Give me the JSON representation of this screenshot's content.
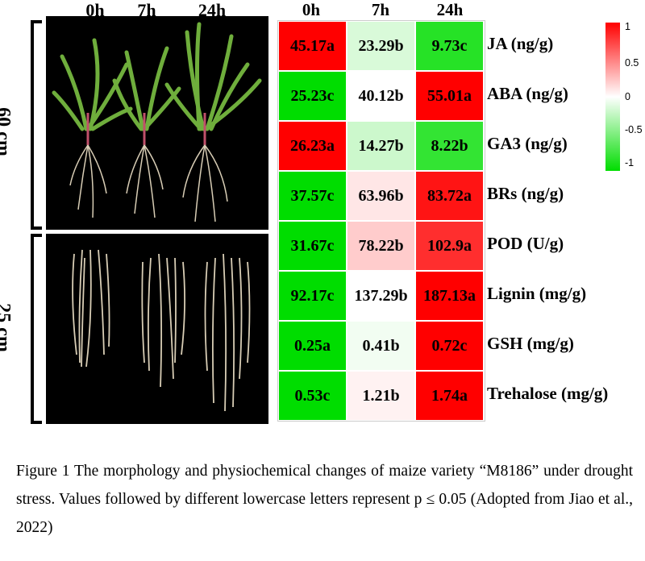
{
  "photo_timepoints": [
    "0h",
    "7h",
    "24h"
  ],
  "row_labels": [
    "60 cm",
    "25 cm"
  ],
  "heatmap": {
    "columns": [
      "0h",
      "7h",
      "24h"
    ],
    "rows": [
      {
        "label": "JA (ng/g)",
        "cells": [
          {
            "text": "45.17a",
            "z": 1.0
          },
          {
            "text": "23.29b",
            "z": -0.15
          },
          {
            "text": "9.73c",
            "z": -0.85
          }
        ]
      },
      {
        "label": "ABA (ng/g)",
        "cells": [
          {
            "text": "25.23c",
            "z": -1.0
          },
          {
            "text": "40.12b",
            "z": 0.0
          },
          {
            "text": "55.01a",
            "z": 1.0
          }
        ]
      },
      {
        "label": "GA3 (ng/g)",
        "cells": [
          {
            "text": "26.23a",
            "z": 1.0
          },
          {
            "text": "14.27b",
            "z": -0.2
          },
          {
            "text": "8.22b",
            "z": -0.8
          }
        ]
      },
      {
        "label": "BRs (ng/g)",
        "cells": [
          {
            "text": "37.57c",
            "z": -1.0
          },
          {
            "text": "63.96b",
            "z": 0.1
          },
          {
            "text": "83.72a",
            "z": 0.92
          }
        ]
      },
      {
        "label": "POD (U/g)",
        "cells": [
          {
            "text": "31.67c",
            "z": -1.0
          },
          {
            "text": "78.22b",
            "z": 0.2
          },
          {
            "text": "102.9a",
            "z": 0.82
          }
        ]
      },
      {
        "label": "Lignin (mg/g)",
        "cells": [
          {
            "text": "92.17c",
            "z": -1.0
          },
          {
            "text": "137.29b",
            "z": 0.0
          },
          {
            "text": "187.13a",
            "z": 1.0
          }
        ]
      },
      {
        "label": "GSH (mg/g)",
        "cells": [
          {
            "text": "0.25a",
            "z": -1.0
          },
          {
            "text": "0.41b",
            "z": -0.05
          },
          {
            "text": "0.72c",
            "z": 1.0
          }
        ]
      },
      {
        "label": "Trehalose (mg/g)",
        "cells": [
          {
            "text": "0.53c",
            "z": -1.0
          },
          {
            "text": "1.21b",
            "z": 0.05
          },
          {
            "text": "1.74a",
            "z": 1.0
          }
        ]
      }
    ]
  },
  "colorbar": {
    "ticks": [
      "1",
      "0.5",
      "0",
      "-0.5",
      "-1"
    ],
    "high_color": "#ff0000",
    "mid_color": "#ffffff",
    "low_color": "#00dd00"
  },
  "caption": {
    "text": "Figure 1 The morphology and physiochemical changes of maize variety “M8186” under drought stress. Values followed by different lowercase letters represent p ≤ 0.05 (Adopted from Jiao et al., 2022)"
  }
}
